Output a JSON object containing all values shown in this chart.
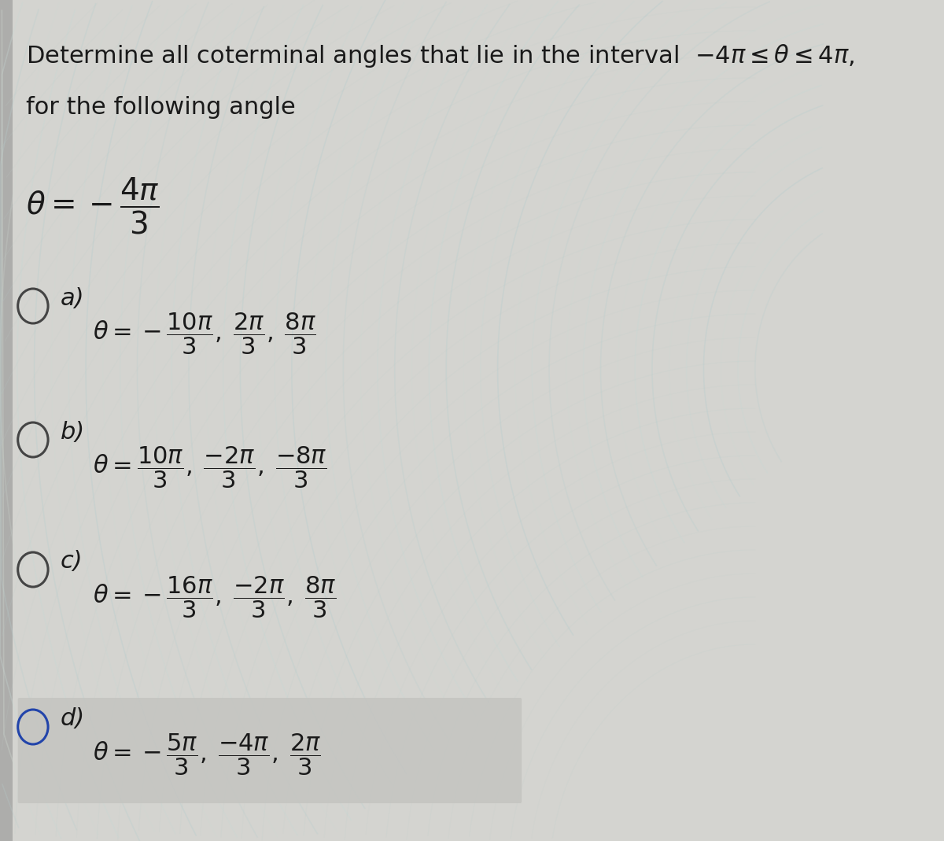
{
  "bg_color_light": "#e8e8e5",
  "bg_color_main": "#d4d4d0",
  "bg_left_strip": "#b0b0b0",
  "text_color": "#1a1a1a",
  "title_line1": "Determine all coterminal angles that lie in the interval",
  "title_interval": "$-4\\pi \\leq \\theta \\leq 4\\pi,$",
  "title_line2": "for the following angle",
  "given_angle": "$\\theta = -\\dfrac{4\\pi}{3}$",
  "options": [
    {
      "label": "a)",
      "formula_parts": [
        "$\\theta = -\\dfrac{10\\pi}{3}$",
        "$\\dfrac{2\\pi}{3}$",
        "$\\dfrac{8\\pi}{3}$"
      ],
      "highlighted": false,
      "circle_color": "#444444"
    },
    {
      "label": "b)",
      "formula_parts": [
        "$\\theta = \\dfrac{10\\pi}{3}$",
        "$\\dfrac{-2\\pi}{3}$",
        "$\\dfrac{-8\\pi}{3}$"
      ],
      "highlighted": false,
      "circle_color": "#444444"
    },
    {
      "label": "c)",
      "formula_parts": [
        "$\\theta = -\\dfrac{16\\pi}{3}$",
        "$\\dfrac{-2\\pi}{3}$",
        "$\\dfrac{8\\pi}{3}$"
      ],
      "highlighted": false,
      "circle_color": "#444444"
    },
    {
      "label": "d)",
      "formula_parts": [
        "$\\theta = -\\dfrac{5\\pi}{3}$",
        "$\\dfrac{-4\\pi}{3}$",
        "$\\dfrac{2\\pi}{3}$"
      ],
      "highlighted": true,
      "circle_color": "#2244aa"
    }
  ],
  "wave_color_main": "#b8cece",
  "wave_color_alt": "#c8d8d4",
  "figsize": [
    12.0,
    10.69
  ],
  "dpi": 100
}
